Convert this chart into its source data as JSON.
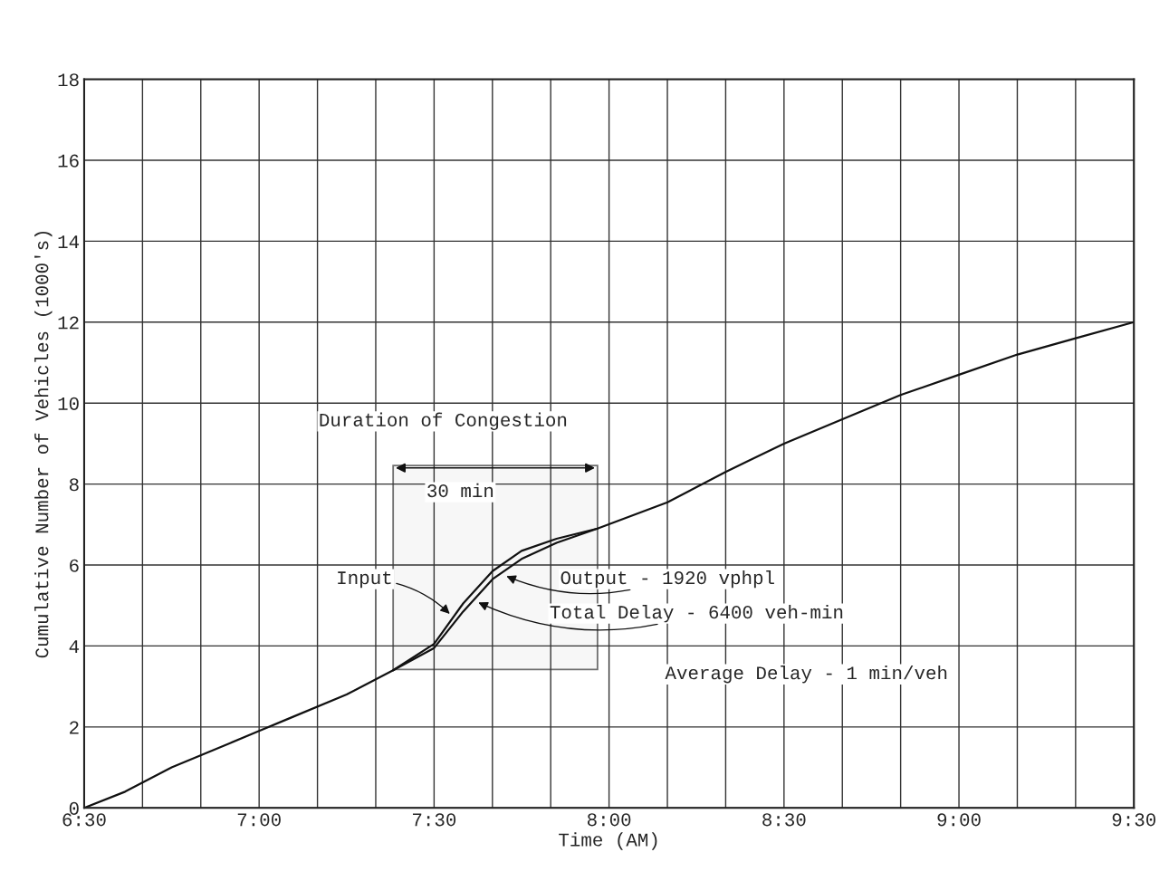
{
  "chart_data": {
    "type": "line",
    "xlabel": "Time (AM)",
    "ylabel": "Cumulative Number of Vehicles (1000's)",
    "series": [
      {
        "color": "#111111",
        "x": [
          6.5,
          6.617,
          6.75,
          6.917,
          7.0,
          7.083,
          7.25,
          7.383,
          7.5,
          7.583,
          7.667,
          7.75,
          7.85,
          7.967,
          8.167,
          8.333,
          8.5,
          8.667,
          8.833,
          9.0,
          9.167,
          9.333,
          9.5
        ],
        "values": [
          0,
          0.4,
          1.0,
          1.6,
          1.9,
          2.2,
          2.8,
          3.4,
          4.05,
          5.05,
          5.85,
          6.35,
          6.65,
          6.9,
          7.55,
          8.3,
          9.0,
          9.6,
          10.2,
          10.7,
          11.2,
          11.6,
          12.0
        ]
      },
      {
        "color": "#111111",
        "x": [
          7.383,
          7.5,
          7.583,
          7.667,
          7.75,
          7.85,
          7.967
        ],
        "values": [
          3.4,
          3.95,
          4.85,
          5.65,
          6.15,
          6.55,
          6.9
        ]
      }
    ],
    "xlim": [
      6.5,
      9.5
    ],
    "xticks": [
      {
        "value": 6.5,
        "label": "6:30"
      },
      {
        "value": 6.6667,
        "label": null
      },
      {
        "value": 6.8333,
        "label": null
      },
      {
        "value": 7.0,
        "label": "7:00"
      },
      {
        "value": 7.1667,
        "label": null
      },
      {
        "value": 7.3333,
        "label": null
      },
      {
        "value": 7.5,
        "label": "7:30"
      },
      {
        "value": 7.6667,
        "label": null
      },
      {
        "value": 7.8333,
        "label": null
      },
      {
        "value": 8.0,
        "label": "8:00"
      },
      {
        "value": 8.1667,
        "label": null
      },
      {
        "value": 8.3333,
        "label": null
      },
      {
        "value": 8.5,
        "label": "8:30"
      },
      {
        "value": 8.6667,
        "label": null
      },
      {
        "value": 8.8333,
        "label": null
      },
      {
        "value": 9.0,
        "label": "9:00"
      },
      {
        "value": 9.1667,
        "label": null
      },
      {
        "value": 9.3333,
        "label": null
      },
      {
        "value": 9.5,
        "label": "9:30"
      }
    ],
    "ylim": [
      0,
      18
    ],
    "yticks": [
      0,
      2,
      4,
      6,
      8,
      10,
      12,
      14,
      16,
      18
    ],
    "grid": true,
    "bands": [
      {
        "axis": "x",
        "from": 7.383,
        "to": 7.967,
        "label": "30 min"
      }
    ],
    "annotations": [
      "Duration of Congestion",
      {
        "text": "Input",
        "x": 7.55,
        "y": 4.75
      },
      {
        "text": "Output - 1920 vphpl",
        "x": 7.7,
        "y": 5.75
      },
      {
        "text": "Total Delay - 6400 veh-min",
        "x": 7.62,
        "y": 5.1
      },
      "Average Delay - 1 min/veh"
    ]
  }
}
